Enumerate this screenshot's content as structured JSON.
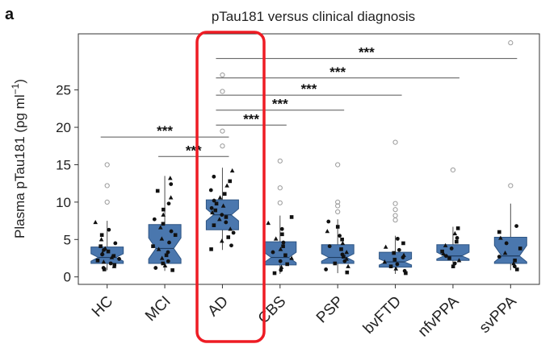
{
  "panel_label": "a",
  "chart_data": {
    "type": "box",
    "title": "pTau181 versus clinical diagnosis",
    "xlabel": "",
    "ylabel": "Plasma pTau181 (pg ml",
    "ylabel_superscript": "−1",
    "ylabel_suffix": ")",
    "ylim": [
      -1,
      32.5
    ],
    "yticks": [
      0,
      5,
      10,
      15,
      20,
      25
    ],
    "grid": false,
    "highlighted_category": "AD",
    "colors": {
      "box": "#4a77ae",
      "box_edge": "#2e5584",
      "highlight": "#ee1c24",
      "point": "#111111"
    },
    "categories": [
      "HC",
      "MCI",
      "AD",
      "CBS",
      "PSP",
      "bvFTD",
      "nfvPPA",
      "svPPA"
    ],
    "boxes": [
      {
        "q1": 1.8,
        "median": 2.6,
        "q3": 4.0,
        "notch_low": 2.1,
        "notch_high": 3.1,
        "whisker_low": 0.9,
        "whisker_high": 7.5,
        "outliers": [
          15.0,
          12.2,
          10.0
        ],
        "points": [
          1.0,
          1.2,
          1.4,
          1.6,
          1.8,
          2.0,
          2.2,
          2.4,
          2.6,
          2.8,
          3.0,
          3.2,
          3.4,
          3.6,
          3.8,
          4.1,
          4.5,
          5.0,
          5.6,
          6.3,
          7.3
        ]
      },
      {
        "q1": 1.8,
        "median": 3.8,
        "q3": 7.0,
        "notch_low": 2.4,
        "notch_high": 5.2,
        "whisker_low": 0.8,
        "whisker_high": 13.5,
        "outliers": [],
        "points": [
          0.9,
          1.2,
          1.5,
          1.8,
          2.1,
          2.5,
          2.9,
          3.3,
          3.7,
          4.1,
          4.6,
          5.1,
          5.6,
          6.1,
          6.6,
          7.1,
          7.7,
          8.3,
          9.0,
          9.8,
          10.6,
          11.5,
          12.4,
          13.2
        ]
      },
      {
        "q1": 6.3,
        "median": 8.3,
        "q3": 10.3,
        "notch_low": 7.5,
        "notch_high": 9.1,
        "whisker_low": 3.6,
        "whisker_high": 14.6,
        "outliers": [
          27.0,
          24.8,
          19.5,
          17.5
        ],
        "points": [
          3.7,
          4.2,
          4.8,
          5.3,
          5.9,
          6.4,
          6.9,
          7.3,
          7.7,
          8.0,
          8.3,
          8.6,
          8.9,
          9.2,
          9.5,
          9.8,
          10.2,
          10.6,
          11.1,
          11.6,
          12.2,
          12.8,
          13.4,
          14.2
        ]
      },
      {
        "q1": 1.6,
        "median": 2.6,
        "q3": 4.7,
        "notch_low": 1.9,
        "notch_high": 3.3,
        "whisker_low": 0.4,
        "whisker_high": 8.2,
        "outliers": [
          15.5,
          11.9,
          9.9
        ],
        "points": [
          0.5,
          0.9,
          1.3,
          1.7,
          2.1,
          2.5,
          2.9,
          3.3,
          3.7,
          4.1,
          4.6,
          5.1,
          5.7,
          6.4,
          7.2,
          8.0
        ]
      },
      {
        "q1": 1.8,
        "median": 2.6,
        "q3": 4.3,
        "notch_low": 2.1,
        "notch_high": 3.1,
        "whisker_low": 0.5,
        "whisker_high": 7.7,
        "outliers": [
          15.0,
          10.0,
          9.5,
          8.7
        ],
        "points": [
          0.6,
          1.0,
          1.4,
          1.8,
          2.1,
          2.4,
          2.7,
          3.0,
          3.3,
          3.7,
          4.1,
          4.5,
          5.0,
          5.5,
          6.1,
          6.7,
          7.4
        ]
      },
      {
        "q1": 1.3,
        "median": 2.0,
        "q3": 3.3,
        "notch_low": 1.6,
        "notch_high": 2.4,
        "whisker_low": 0.4,
        "whisker_high": 5.5,
        "outliers": [
          18.0,
          9.8,
          9.0,
          8.2,
          7.6
        ],
        "points": [
          0.5,
          0.8,
          1.1,
          1.4,
          1.7,
          2.0,
          2.3,
          2.6,
          2.9,
          3.2,
          3.6,
          4.0,
          4.5,
          5.1
        ]
      },
      {
        "q1": 2.2,
        "median": 2.8,
        "q3": 4.3,
        "notch_low": 2.4,
        "notch_high": 3.3,
        "whisker_low": 1.3,
        "whisker_high": 6.7,
        "outliers": [
          14.3
        ],
        "points": [
          1.4,
          1.8,
          2.2,
          2.5,
          2.8,
          3.1,
          3.4,
          3.8,
          4.2,
          4.7,
          5.2,
          5.8,
          6.5
        ]
      },
      {
        "q1": 1.8,
        "median": 2.8,
        "q3": 5.3,
        "notch_low": 2.0,
        "notch_high": 4.2,
        "whisker_low": 0.9,
        "whisker_high": 9.8,
        "outliers": [
          31.3,
          12.2
        ],
        "points": [
          1.0,
          1.4,
          1.8,
          2.2,
          2.7,
          3.2,
          3.8,
          4.5,
          5.2,
          6.0,
          6.8
        ]
      }
    ],
    "annotations": [
      {
        "label": "***",
        "from": "HC",
        "to": "AD",
        "y": 18.7
      },
      {
        "label": "***",
        "from": "MCI",
        "to": "AD",
        "y": 16.1
      },
      {
        "label": "***",
        "from": "AD",
        "to": "CBS",
        "y": 20.3
      },
      {
        "label": "***",
        "from": "AD",
        "to": "PSP",
        "y": 22.3
      },
      {
        "label": "***",
        "from": "AD",
        "to": "bvFTD",
        "y": 24.3
      },
      {
        "label": "***",
        "from": "AD",
        "to": "nfvPPA",
        "y": 26.6
      },
      {
        "label": "***",
        "from": "AD",
        "to": "svPPA",
        "y": 29.2
      }
    ]
  }
}
